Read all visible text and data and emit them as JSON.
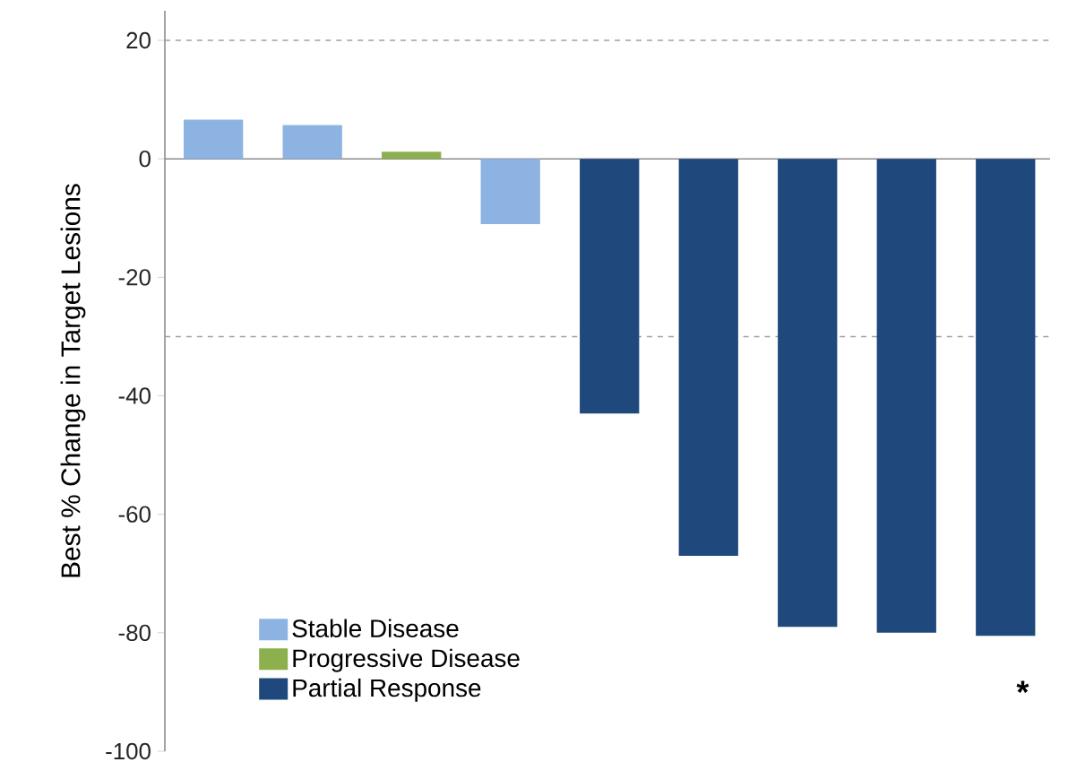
{
  "chart_data": {
    "type": "bar",
    "ylabel": "Best % Change in Target Lesions",
    "categories": [
      null,
      null,
      null,
      null,
      null,
      null,
      null,
      null,
      null
    ],
    "series": [
      {
        "name": "Stable Disease",
        "color": "#8db3e2",
        "values": [
          6.6,
          5.7,
          null,
          -11,
          null,
          null,
          null,
          null,
          null
        ]
      },
      {
        "name": "Progressive Disease",
        "color": "#8db04e",
        "values": [
          null,
          null,
          1.2,
          null,
          null,
          null,
          null,
          null,
          null
        ]
      },
      {
        "name": "Partial Response",
        "color": "#1f497d",
        "values": [
          null,
          null,
          null,
          null,
          -43,
          -67,
          -79,
          -80,
          -80.5
        ]
      }
    ],
    "ylim": [
      -100,
      25
    ],
    "yticks": [
      -100,
      -80,
      -60,
      -40,
      -20,
      0,
      20
    ],
    "ref_lines": [
      {
        "axis": "y",
        "value": 20,
        "color": "#a0a0a0",
        "line_style": "dashed"
      },
      {
        "axis": "y",
        "value": -30,
        "color": "#a0a0a0",
        "line_style": "dashed"
      }
    ],
    "tick_labels": "y",
    "grid": false,
    "legend": "bottom left",
    "annotations": [
      "*"
    ]
  }
}
